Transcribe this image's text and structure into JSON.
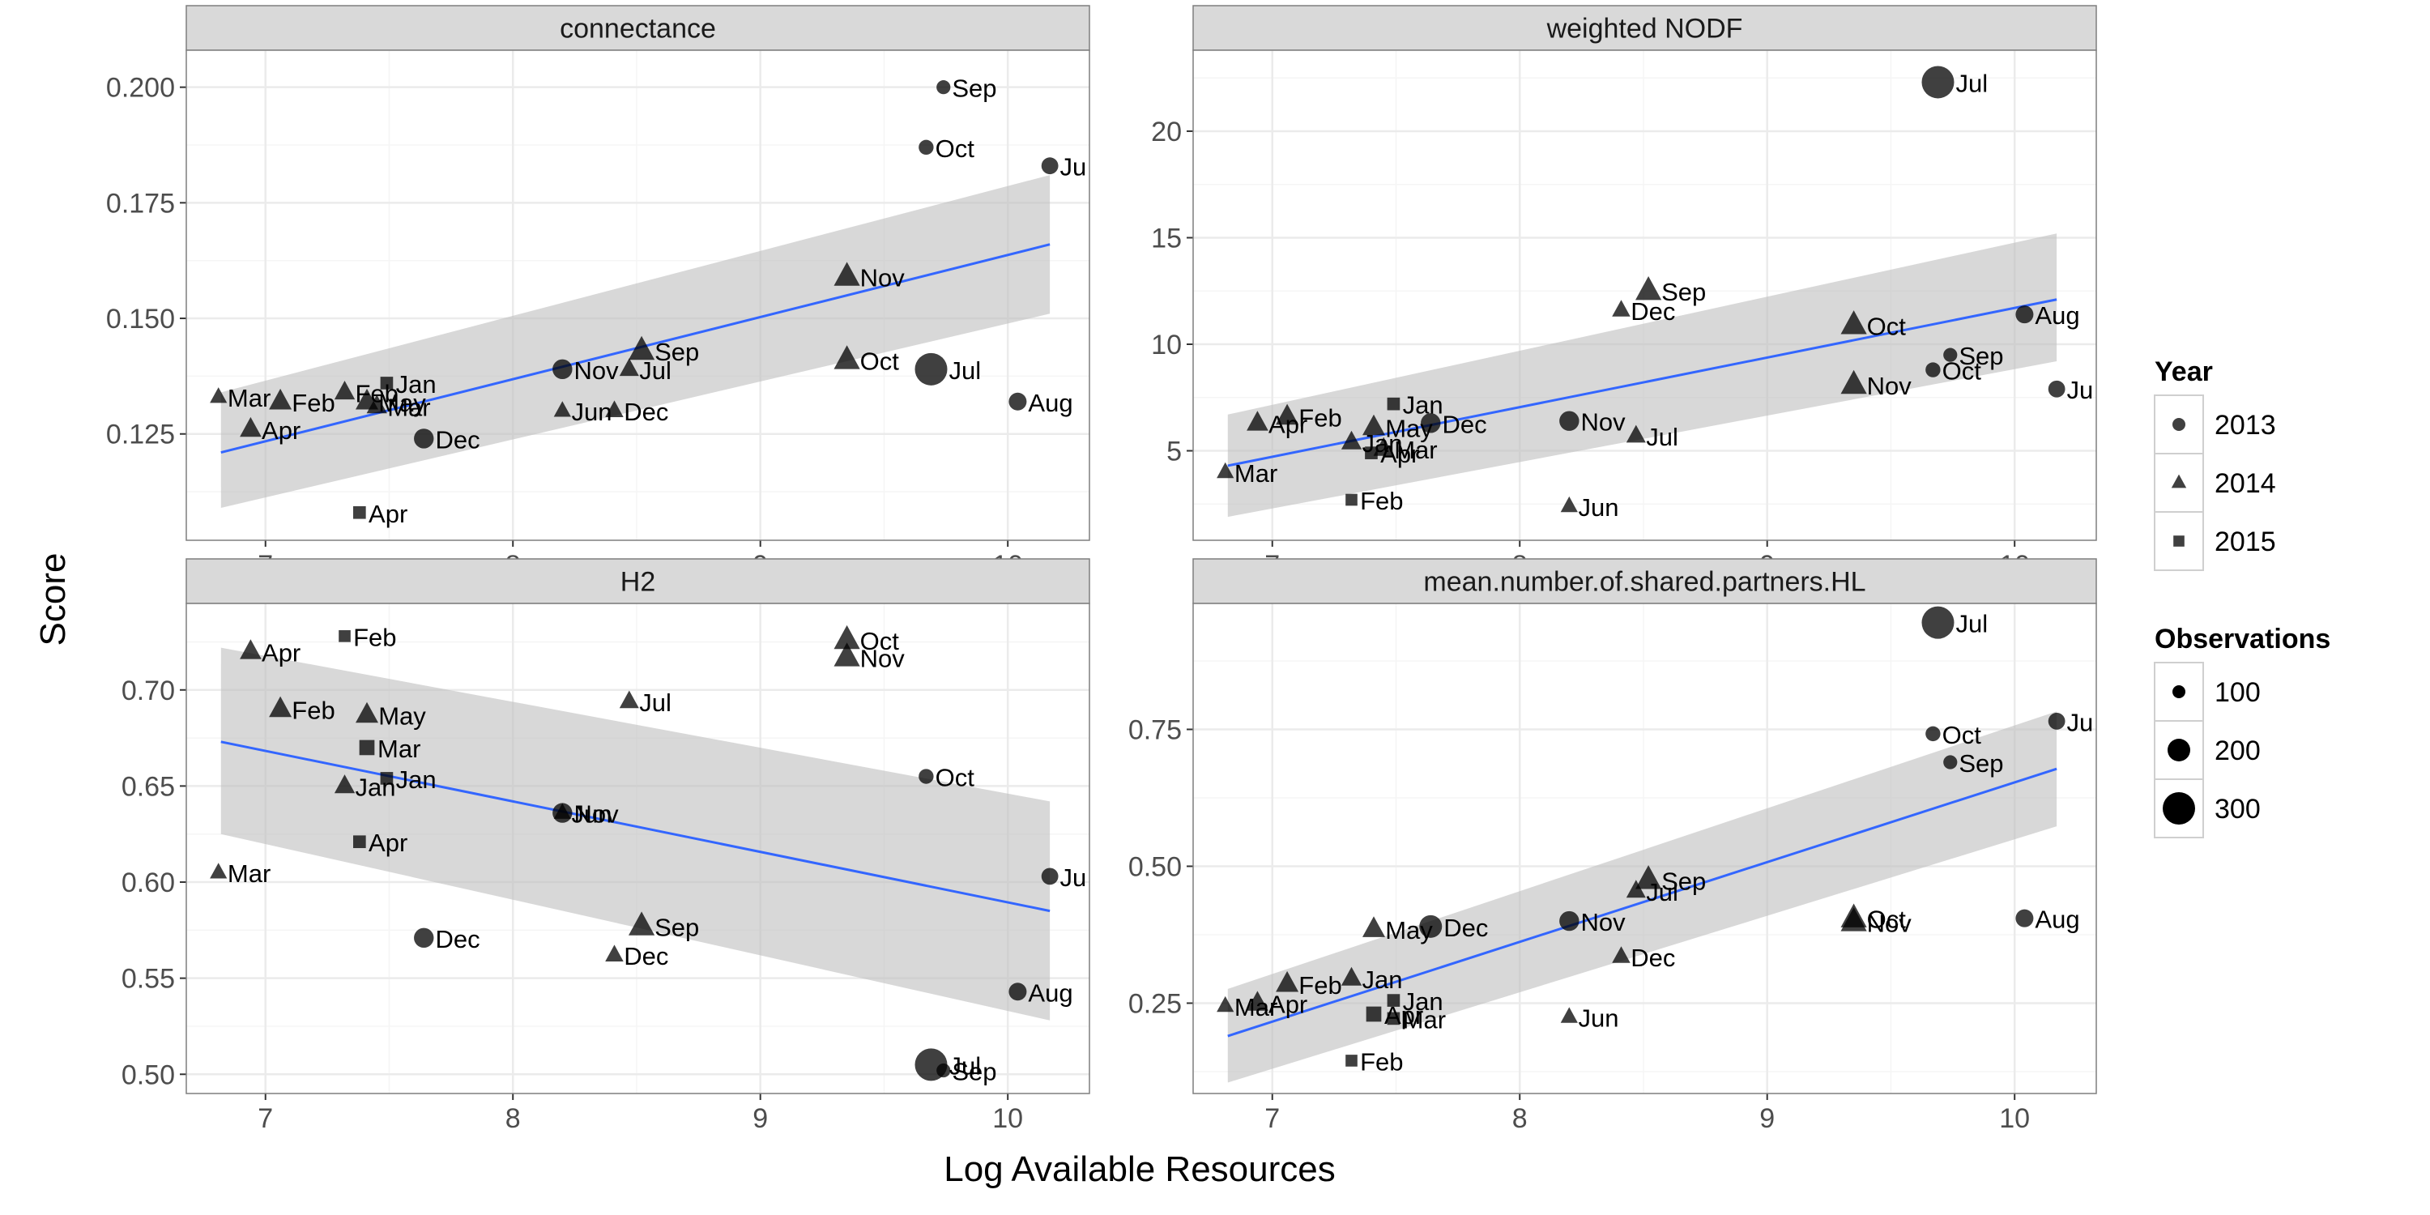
{
  "figure": {
    "xlabel": "Log Available Resources",
    "ylabel": "Score",
    "legend_year_title": "Year",
    "legend_obs_title": "Observations"
  },
  "colors": {
    "strip": "#d9d9d9",
    "panel": "#ffffff",
    "grid_major": "#ebebeb",
    "grid_minor": "#f5f5f5",
    "fit_line": "#3366ff",
    "ribbon": "#bebebe",
    "point": "#000000",
    "point_alpha": 0.75
  },
  "legend": {
    "year": [
      {
        "label": "2013",
        "shape": "circle"
      },
      {
        "label": "2014",
        "shape": "triangle"
      },
      {
        "label": "2015",
        "shape": "square"
      }
    ],
    "observations": [
      {
        "label": "100",
        "value": 100
      },
      {
        "label": "200",
        "value": 200
      },
      {
        "label": "300",
        "value": 300
      }
    ]
  },
  "chart_data": [
    {
      "type": "scatter",
      "title": "connectance",
      "xlim": [
        6.68,
        10.33
      ],
      "ylim": [
        0.102,
        0.208
      ],
      "x_ticks": [
        7,
        8,
        9,
        10
      ],
      "y_ticks": [
        0.125,
        0.15,
        0.175,
        0.2
      ],
      "y_tick_labels": [
        "0.125",
        "0.150",
        "0.175",
        "0.200"
      ],
      "fit": {
        "x": [
          6.82,
          10.17
        ],
        "y": [
          0.121,
          0.166
        ],
        "lower": [
          0.109,
          0.151
        ],
        "upper": [
          0.134,
          0.181
        ]
      },
      "points": [
        {
          "x": 9.74,
          "y": 0.2,
          "label": "Sep",
          "year": 2013,
          "obs": 110
        },
        {
          "x": 9.67,
          "y": 0.187,
          "label": "Oct",
          "year": 2013,
          "obs": 120
        },
        {
          "x": 10.17,
          "y": 0.183,
          "label": "Ju",
          "year": 2013,
          "obs": 140
        },
        {
          "x": 9.69,
          "y": 0.139,
          "label": "Jul",
          "year": 2013,
          "obs": 300
        },
        {
          "x": 10.04,
          "y": 0.132,
          "label": "Aug",
          "year": 2013,
          "obs": 150
        },
        {
          "x": 8.2,
          "y": 0.139,
          "label": "Nov",
          "year": 2013,
          "obs": 170
        },
        {
          "x": 7.64,
          "y": 0.124,
          "label": "Dec",
          "year": 2013,
          "obs": 170
        },
        {
          "x": 9.35,
          "y": 0.159,
          "label": "Nov",
          "year": 2014,
          "obs": 200
        },
        {
          "x": 9.35,
          "y": 0.141,
          "label": "Oct",
          "year": 2014,
          "obs": 200
        },
        {
          "x": 8.52,
          "y": 0.143,
          "label": "Sep",
          "year": 2014,
          "obs": 200
        },
        {
          "x": 8.47,
          "y": 0.139,
          "label": "Jul",
          "year": 2014,
          "obs": 140
        },
        {
          "x": 8.2,
          "y": 0.13,
          "label": "Jun",
          "year": 2014,
          "obs": 120
        },
        {
          "x": 8.41,
          "y": 0.13,
          "label": "Dec",
          "year": 2014,
          "obs": 130
        },
        {
          "x": 6.81,
          "y": 0.133,
          "label": "Mar",
          "year": 2014,
          "obs": 120
        },
        {
          "x": 6.94,
          "y": 0.126,
          "label": "Apr",
          "year": 2014,
          "obs": 160
        },
        {
          "x": 7.06,
          "y": 0.132,
          "label": "Feb",
          "year": 2014,
          "obs": 170
        },
        {
          "x": 7.32,
          "y": 0.134,
          "label": "Feb",
          "year": 2014,
          "obs": 150
        },
        {
          "x": 7.41,
          "y": 0.132,
          "label": "May",
          "year": 2014,
          "obs": 170
        },
        {
          "x": 7.45,
          "y": 0.131,
          "label": "Mar",
          "year": 2014,
          "obs": 150
        },
        {
          "x": 7.49,
          "y": 0.136,
          "label": "Jan",
          "year": 2015,
          "obs": 120
        },
        {
          "x": 7.38,
          "y": 0.108,
          "label": "Apr",
          "year": 2015,
          "obs": 120
        }
      ]
    },
    {
      "type": "scatter",
      "title": "weighted NODF",
      "xlim": [
        6.68,
        10.33
      ],
      "ylim": [
        0.8,
        23.8
      ],
      "x_ticks": [
        7,
        8,
        9,
        10
      ],
      "y_ticks": [
        5,
        10,
        15,
        20
      ],
      "y_tick_labels": [
        "5",
        "10",
        "15",
        "20"
      ],
      "fit": {
        "x": [
          6.82,
          10.17
        ],
        "y": [
          4.3,
          12.1
        ],
        "lower": [
          1.9,
          9.2
        ],
        "upper": [
          6.7,
          15.2
        ]
      },
      "points": [
        {
          "x": 9.69,
          "y": 22.3,
          "label": "Jul",
          "year": 2013,
          "obs": 300
        },
        {
          "x": 10.04,
          "y": 11.4,
          "label": "Aug",
          "year": 2013,
          "obs": 150
        },
        {
          "x": 9.74,
          "y": 9.5,
          "label": "Sep",
          "year": 2013,
          "obs": 110
        },
        {
          "x": 9.67,
          "y": 8.8,
          "label": "Oct",
          "year": 2013,
          "obs": 120
        },
        {
          "x": 10.17,
          "y": 7.9,
          "label": "Ju",
          "year": 2013,
          "obs": 140
        },
        {
          "x": 8.2,
          "y": 6.4,
          "label": "Nov",
          "year": 2013,
          "obs": 170
        },
        {
          "x": 7.64,
          "y": 6.3,
          "label": "Dec",
          "year": 2013,
          "obs": 170
        },
        {
          "x": 8.52,
          "y": 12.5,
          "label": "Sep",
          "year": 2014,
          "obs": 200
        },
        {
          "x": 8.41,
          "y": 11.6,
          "label": "Dec",
          "year": 2014,
          "obs": 130
        },
        {
          "x": 9.35,
          "y": 10.9,
          "label": "Oct",
          "year": 2014,
          "obs": 200
        },
        {
          "x": 9.35,
          "y": 8.1,
          "label": "Nov",
          "year": 2014,
          "obs": 200
        },
        {
          "x": 8.47,
          "y": 5.7,
          "label": "Jul",
          "year": 2014,
          "obs": 140
        },
        {
          "x": 8.2,
          "y": 2.4,
          "label": "Jun",
          "year": 2014,
          "obs": 120
        },
        {
          "x": 6.81,
          "y": 4.0,
          "label": "Mar",
          "year": 2014,
          "obs": 120
        },
        {
          "x": 6.94,
          "y": 6.3,
          "label": "Apr",
          "year": 2014,
          "obs": 160
        },
        {
          "x": 7.06,
          "y": 6.6,
          "label": "Feb",
          "year": 2014,
          "obs": 170
        },
        {
          "x": 7.41,
          "y": 6.1,
          "label": "May",
          "year": 2014,
          "obs": 170
        },
        {
          "x": 7.32,
          "y": 5.4,
          "label": "Jan",
          "year": 2014,
          "obs": 150
        },
        {
          "x": 7.45,
          "y": 5.1,
          "label": "Mar",
          "year": 2014,
          "obs": 150
        },
        {
          "x": 7.49,
          "y": 7.2,
          "label": "Jan",
          "year": 2015,
          "obs": 120
        },
        {
          "x": 7.4,
          "y": 4.9,
          "label": "Apr",
          "year": 2015,
          "obs": 120
        },
        {
          "x": 7.32,
          "y": 2.7,
          "label": "Feb",
          "year": 2015,
          "obs": 110
        }
      ]
    },
    {
      "type": "scatter",
      "title": "H2",
      "xlim": [
        6.68,
        10.33
      ],
      "ylim": [
        0.49,
        0.745
      ],
      "x_ticks": [
        7,
        8,
        9,
        10
      ],
      "y_ticks": [
        0.5,
        0.55,
        0.6,
        0.65,
        0.7
      ],
      "y_tick_labels": [
        "0.50",
        "0.55",
        "0.60",
        "0.65",
        "0.70"
      ],
      "fit": {
        "x": [
          6.82,
          10.17
        ],
        "y": [
          0.673,
          0.585
        ],
        "lower": [
          0.625,
          0.528
        ],
        "upper": [
          0.722,
          0.642
        ]
      },
      "points": [
        {
          "x": 9.67,
          "y": 0.655,
          "label": "Oct",
          "year": 2013,
          "obs": 120
        },
        {
          "x": 10.17,
          "y": 0.603,
          "label": "Ju",
          "year": 2013,
          "obs": 140
        },
        {
          "x": 10.04,
          "y": 0.543,
          "label": "Aug",
          "year": 2013,
          "obs": 150
        },
        {
          "x": 9.69,
          "y": 0.505,
          "label": "Jul",
          "year": 2013,
          "obs": 300
        },
        {
          "x": 9.74,
          "y": 0.502,
          "label": "Sep",
          "year": 2013,
          "obs": 110
        },
        {
          "x": 8.2,
          "y": 0.636,
          "label": "Nov",
          "year": 2013,
          "obs": 170
        },
        {
          "x": 7.64,
          "y": 0.571,
          "label": "Dec",
          "year": 2013,
          "obs": 170
        },
        {
          "x": 9.35,
          "y": 0.726,
          "label": "Oct",
          "year": 2014,
          "obs": 200
        },
        {
          "x": 9.35,
          "y": 0.717,
          "label": "Nov",
          "year": 2014,
          "obs": 200
        },
        {
          "x": 8.47,
          "y": 0.694,
          "label": "Jul",
          "year": 2014,
          "obs": 140
        },
        {
          "x": 8.2,
          "y": 0.636,
          "label": "Jun",
          "year": 2014,
          "obs": 120
        },
        {
          "x": 8.52,
          "y": 0.577,
          "label": "Sep",
          "year": 2014,
          "obs": 200
        },
        {
          "x": 8.41,
          "y": 0.562,
          "label": "Dec",
          "year": 2014,
          "obs": 130
        },
        {
          "x": 6.94,
          "y": 0.72,
          "label": "Apr",
          "year": 2014,
          "obs": 160
        },
        {
          "x": 7.06,
          "y": 0.69,
          "label": "Feb",
          "year": 2014,
          "obs": 170
        },
        {
          "x": 7.41,
          "y": 0.687,
          "label": "May",
          "year": 2014,
          "obs": 170
        },
        {
          "x": 7.32,
          "y": 0.65,
          "label": "Jan",
          "year": 2014,
          "obs": 150
        },
        {
          "x": 6.81,
          "y": 0.605,
          "label": "Mar",
          "year": 2014,
          "obs": 120
        },
        {
          "x": 7.32,
          "y": 0.728,
          "label": "Feb",
          "year": 2015,
          "obs": 110
        },
        {
          "x": 7.41,
          "y": 0.67,
          "label": "Mar",
          "year": 2015,
          "obs": 150
        },
        {
          "x": 7.49,
          "y": 0.654,
          "label": "Jan",
          "year": 2015,
          "obs": 120
        },
        {
          "x": 7.38,
          "y": 0.621,
          "label": "Apr",
          "year": 2015,
          "obs": 120
        }
      ]
    },
    {
      "type": "scatter",
      "title": "mean.number.of.shared.partners.HL",
      "xlim": [
        6.68,
        10.33
      ],
      "ylim": [
        0.085,
        0.98
      ],
      "x_ticks": [
        7,
        8,
        9,
        10
      ],
      "y_ticks": [
        0.25,
        0.5,
        0.75
      ],
      "y_tick_labels": [
        "0.25",
        "0.50",
        "0.75"
      ],
      "fit": {
        "x": [
          6.82,
          10.17
        ],
        "y": [
          0.19,
          0.678
        ],
        "lower": [
          0.105,
          0.573
        ],
        "upper": [
          0.276,
          0.783
        ]
      },
      "points": [
        {
          "x": 9.69,
          "y": 0.945,
          "label": "Jul",
          "year": 2013,
          "obs": 300
        },
        {
          "x": 10.17,
          "y": 0.765,
          "label": "Ju",
          "year": 2013,
          "obs": 140
        },
        {
          "x": 9.67,
          "y": 0.742,
          "label": "Oct",
          "year": 2013,
          "obs": 120
        },
        {
          "x": 9.74,
          "y": 0.69,
          "label": "Sep",
          "year": 2013,
          "obs": 110
        },
        {
          "x": 10.04,
          "y": 0.405,
          "label": "Aug",
          "year": 2013,
          "obs": 150
        },
        {
          "x": 8.2,
          "y": 0.4,
          "label": "Nov",
          "year": 2013,
          "obs": 170
        },
        {
          "x": 7.64,
          "y": 0.39,
          "label": "Dec",
          "year": 2013,
          "obs": 200
        },
        {
          "x": 8.52,
          "y": 0.475,
          "label": "Sep",
          "year": 2014,
          "obs": 200
        },
        {
          "x": 8.47,
          "y": 0.455,
          "label": "Jul",
          "year": 2014,
          "obs": 140
        },
        {
          "x": 9.35,
          "y": 0.405,
          "label": "Oct",
          "year": 2014,
          "obs": 200
        },
        {
          "x": 9.35,
          "y": 0.398,
          "label": "Nov",
          "year": 2014,
          "obs": 200
        },
        {
          "x": 8.41,
          "y": 0.335,
          "label": "Dec",
          "year": 2014,
          "obs": 130
        },
        {
          "x": 8.2,
          "y": 0.225,
          "label": "Jun",
          "year": 2014,
          "obs": 120
        },
        {
          "x": 7.41,
          "y": 0.385,
          "label": "May",
          "year": 2014,
          "obs": 170
        },
        {
          "x": 7.32,
          "y": 0.295,
          "label": "Jan",
          "year": 2014,
          "obs": 150
        },
        {
          "x": 7.06,
          "y": 0.285,
          "label": "Feb",
          "year": 2014,
          "obs": 170
        },
        {
          "x": 6.94,
          "y": 0.25,
          "label": "Apr",
          "year": 2014,
          "obs": 160
        },
        {
          "x": 6.81,
          "y": 0.245,
          "label": "Mar",
          "year": 2014,
          "obs": 120
        },
        {
          "x": 7.49,
          "y": 0.255,
          "label": "Jan",
          "year": 2015,
          "obs": 120
        },
        {
          "x": 7.41,
          "y": 0.23,
          "label": "Apr",
          "year": 2015,
          "obs": 150
        },
        {
          "x": 7.49,
          "y": 0.222,
          "label": "Mar",
          "year": 2015,
          "obs": 120
        },
        {
          "x": 7.32,
          "y": 0.145,
          "label": "Feb",
          "year": 2015,
          "obs": 110
        }
      ]
    }
  ]
}
